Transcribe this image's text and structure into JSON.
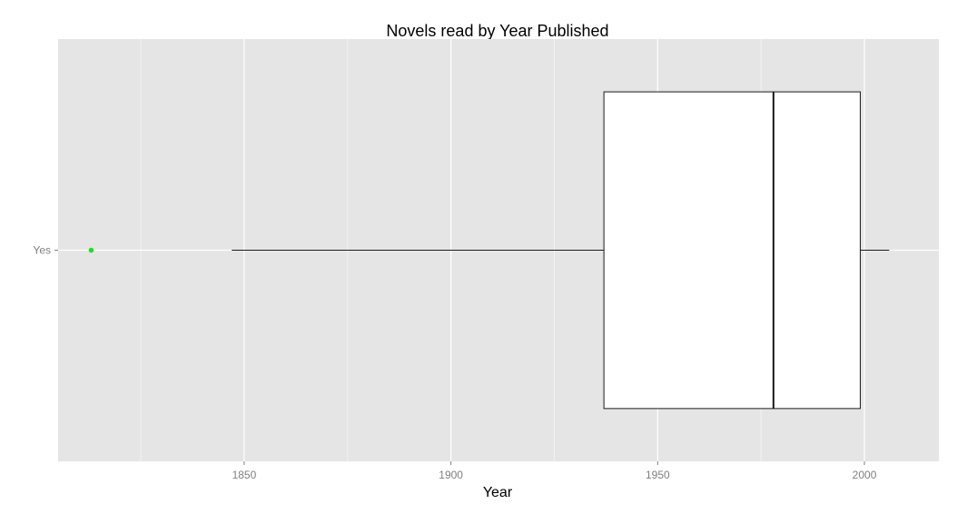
{
  "colors": {
    "panel_bg": "#e5e5e5",
    "grid_major": "#ffffff",
    "grid_minor": "#f2f2f2",
    "box_fill": "#ffffff",
    "box_stroke": "#1a1a1a",
    "outlier": "#22dd22",
    "tick_text": "#7f7f7f",
    "title_text": "#000000"
  },
  "chart_data": {
    "type": "boxplot",
    "orientation": "horizontal",
    "title": "Novels read by Year Published",
    "xlabel": "Year",
    "ylabel": "",
    "xlim": [
      1805,
      2018
    ],
    "x_ticks": [
      1850,
      1900,
      1950,
      2000
    ],
    "x_minor_ticks": [
      1825,
      1875,
      1925,
      1975
    ],
    "grid": true,
    "legend": "none",
    "categories": [
      "Yes"
    ],
    "boxes": [
      {
        "category": "Yes",
        "whisker_low": 1847,
        "q1": 1937,
        "median": 1978,
        "q3": 1999,
        "whisker_high": 2006,
        "outliers": [
          1813
        ]
      }
    ]
  }
}
